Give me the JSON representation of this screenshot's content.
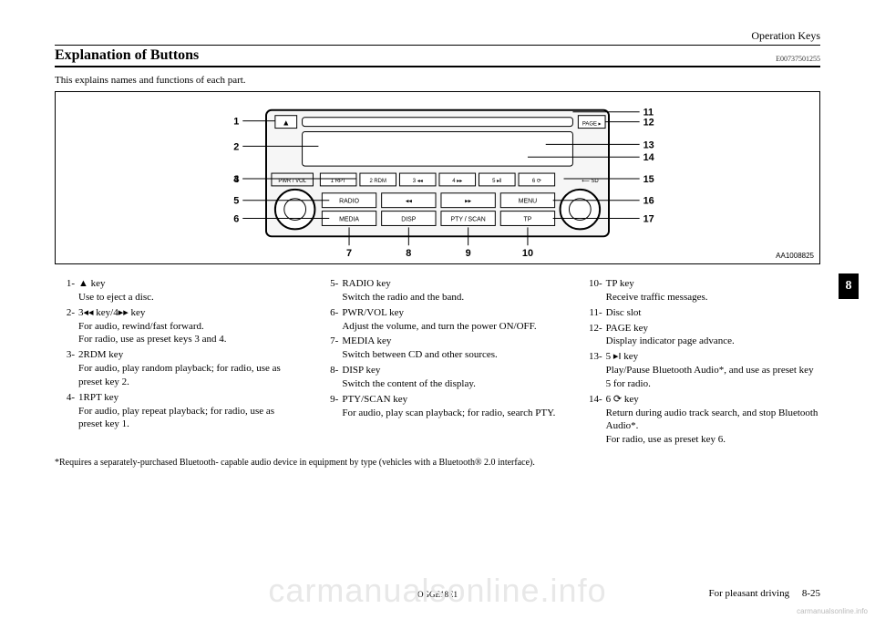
{
  "header_right": "Operation Keys",
  "section_title": "Explanation of Buttons",
  "section_code": "E00737501255",
  "intro": "This explains names and functions of each part.",
  "diagram": {
    "caption": "AA1008825",
    "left_labels": [
      "1",
      "2",
      "3",
      "4",
      "5",
      "6"
    ],
    "right_labels": [
      "11",
      "12",
      "13",
      "14",
      "15",
      "16",
      "17"
    ],
    "bottom_labels": [
      "7",
      "8",
      "9",
      "10"
    ],
    "buttons_row1": [
      "1 RPT",
      "2 RDM",
      "3 ◂◂",
      "4 ▸▸",
      "5 ▸‖",
      "6 ⟳"
    ],
    "left_big": "PWR / VOL",
    "row2": [
      "RADIO",
      "◂◂",
      "▸▸",
      "MENU"
    ],
    "row3": [
      "MEDIA",
      "DISP",
      "PTY / SCAN",
      "TP"
    ],
    "eject": "▲",
    "page_btn": "PAGE ▸",
    "sd": "⟵ SD"
  },
  "items": [
    {
      "n": "1-",
      "label": "▲ key",
      "desc": "Use to eject a disc."
    },
    {
      "n": "2-",
      "label": "3◂◂ key/4▸▸ key",
      "desc": "For audio, rewind/fast forward.\nFor radio, use as preset keys 3 and 4."
    },
    {
      "n": "3-",
      "label": "2RDM key",
      "desc": "For audio, play random playback; for radio, use as preset key 2."
    },
    {
      "n": "4-",
      "label": "1RPT key",
      "desc": "For audio, play repeat playback; for radio, use as preset key 1."
    },
    {
      "n": "5-",
      "label": "RADIO key",
      "desc": "Switch the radio and the band."
    },
    {
      "n": "6-",
      "label": "PWR/VOL key",
      "desc": "Adjust the volume, and turn the power ON/OFF."
    },
    {
      "n": "7-",
      "label": "MEDIA key",
      "desc": "Switch between CD and other sources."
    },
    {
      "n": "8-",
      "label": "DISP key",
      "desc": "Switch the content of the display."
    },
    {
      "n": "9-",
      "label": "PTY/SCAN key",
      "desc": "For audio, play scan playback; for radio, search PTY."
    },
    {
      "n": "10-",
      "label": "TP key",
      "desc": "Receive traffic messages."
    },
    {
      "n": "11-",
      "label": "Disc slot",
      "desc": ""
    },
    {
      "n": "12-",
      "label": "PAGE key",
      "desc": "Display indicator page advance."
    },
    {
      "n": "13-",
      "label": "5 ▸‖ key",
      "desc": "Play/Pause Bluetooth Audio*, and use as preset key 5 for radio."
    },
    {
      "n": "14-",
      "label": "6 ⟳ key",
      "desc": "Return during audio track search, and stop Bluetooth Audio*.\nFor radio, use as preset key 6."
    }
  ],
  "footnote": "*Requires a separately-purchased Bluetooth- capable audio device in equipment by type (vehicles with a Bluetooth® 2.0 interface).",
  "footer_code": "OGGE18E1",
  "footer_right_text": "For pleasant driving",
  "footer_right_page": "8-25",
  "side_tab": "8",
  "watermark_big": "carmanualsonline.info",
  "watermark_small": "carmanualsonline.info"
}
